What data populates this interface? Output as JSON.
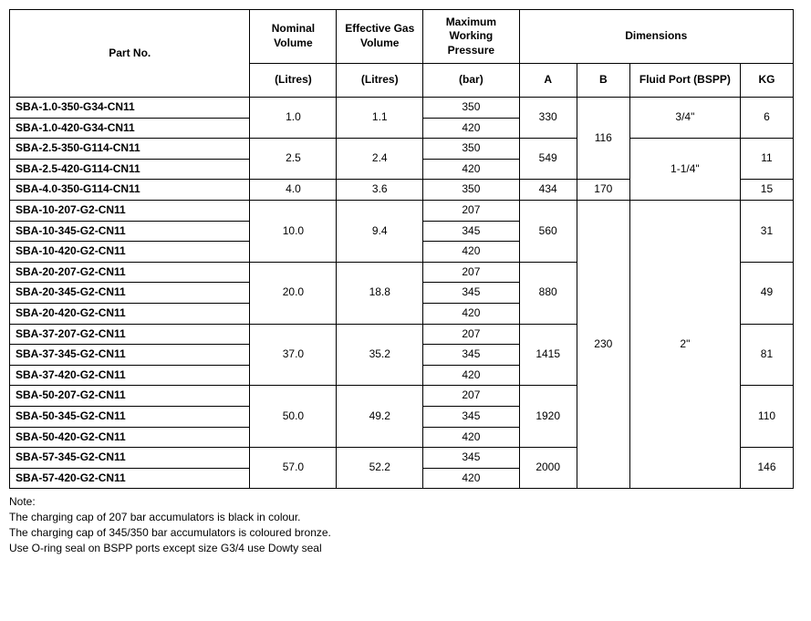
{
  "headers": {
    "partNo": "Part No.",
    "nominalVolume": "Nominal Volume",
    "effectiveGasVolume": "Effective Gas Volume",
    "maxWorkingPressure": "Maximum Working Pressure",
    "dimensions": "Dimensions",
    "litres": "(Litres)",
    "bar": "(bar)",
    "A": "A",
    "B": "B",
    "fluidPort": "Fluid Port (BSPP)",
    "KG": "KG"
  },
  "columnWidths": {
    "partNo": 250,
    "nominalVolume": 90,
    "effectiveGasVolume": 90,
    "maxWorkingPressure": 100,
    "A": 60,
    "B": 55,
    "fluidPort": 115,
    "KG": 55
  },
  "rows": [
    {
      "part": "SBA-1.0-350-G34-CN11",
      "nv": "1.0",
      "nvSpan": 2,
      "egv": "1.1",
      "egvSpan": 2,
      "mwp": "350",
      "a": "330",
      "aSpan": 2,
      "b": "116",
      "bSpan": 4,
      "fp": "3/4\"",
      "fpSpan": 2,
      "kg": "6",
      "kgSpan": 2
    },
    {
      "part": "SBA-1.0-420-G34-CN11",
      "mwp": "420"
    },
    {
      "part": "SBA-2.5-350-G114-CN11",
      "nv": "2.5",
      "nvSpan": 2,
      "egv": "2.4",
      "egvSpan": 2,
      "mwp": "350",
      "a": "549",
      "aSpan": 2,
      "fp": "1-1/4\"",
      "fpSpan": 3,
      "kg": "11",
      "kgSpan": 2
    },
    {
      "part": "SBA-2.5-420-G114-CN11",
      "mwp": "420"
    },
    {
      "part": "SBA-4.0-350-G114-CN11",
      "nv": "4.0",
      "nvSpan": 1,
      "egv": "3.6",
      "egvSpan": 1,
      "mwp": "350",
      "a": "434",
      "aSpan": 1,
      "b": "170",
      "bSpan": 1,
      "kg": "15",
      "kgSpan": 1
    },
    {
      "part": "SBA-10-207-G2-CN11",
      "nv": "10.0",
      "nvSpan": 3,
      "egv": "9.4",
      "egvSpan": 3,
      "mwp": "207",
      "a": "560",
      "aSpan": 3,
      "b": "230",
      "bSpan": 14,
      "fp": "2\"",
      "fpSpan": 14,
      "kg": "31",
      "kgSpan": 3
    },
    {
      "part": "SBA-10-345-G2-CN11",
      "mwp": "345"
    },
    {
      "part": "SBA-10-420-G2-CN11",
      "mwp": "420"
    },
    {
      "part": "SBA-20-207-G2-CN11",
      "nv": "20.0",
      "nvSpan": 3,
      "egv": "18.8",
      "egvSpan": 3,
      "mwp": "207",
      "a": "880",
      "aSpan": 3,
      "kg": "49",
      "kgSpan": 3
    },
    {
      "part": "SBA-20-345-G2-CN11",
      "mwp": "345"
    },
    {
      "part": "SBA-20-420-G2-CN11",
      "mwp": "420"
    },
    {
      "part": "SBA-37-207-G2-CN11",
      "nv": "37.0",
      "nvSpan": 3,
      "egv": "35.2",
      "egvSpan": 3,
      "mwp": "207",
      "a": "1415",
      "aSpan": 3,
      "kg": "81",
      "kgSpan": 3
    },
    {
      "part": "SBA-37-345-G2-CN11",
      "mwp": "345"
    },
    {
      "part": "SBA-37-420-G2-CN11",
      "mwp": "420"
    },
    {
      "part": "SBA-50-207-G2-CN11",
      "nv": "50.0",
      "nvSpan": 3,
      "egv": "49.2",
      "egvSpan": 3,
      "mwp": "207",
      "a": "1920",
      "aSpan": 3,
      "kg": "110",
      "kgSpan": 3
    },
    {
      "part": "SBA-50-345-G2-CN11",
      "mwp": "345"
    },
    {
      "part": "SBA-50-420-G2-CN11",
      "mwp": "420"
    },
    {
      "part": "SBA-57-345-G2-CN11",
      "nv": "57.0",
      "nvSpan": 2,
      "egv": "52.2",
      "egvSpan": 2,
      "mwp": "345",
      "a": "2000",
      "aSpan": 2,
      "kg": "146",
      "kgSpan": 2
    },
    {
      "part": "SBA-57-420-G2-CN11",
      "mwp": "420"
    }
  ],
  "notes": {
    "title": "Note:",
    "lines": [
      "The charging cap of 207 bar accumulators is black in colour.",
      "The charging cap of 345/350 bar accumulators is coloured bronze.",
      "Use O-ring seal on BSPP ports except size G3/4 use Dowty seal"
    ]
  }
}
